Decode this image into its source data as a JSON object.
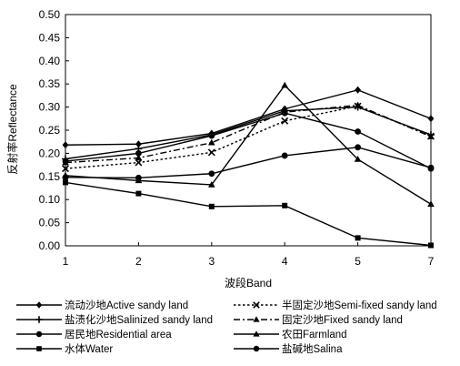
{
  "chart_data": {
    "type": "line",
    "title": "",
    "xlabel": "波段Band",
    "ylabel": "反射率Reflectance",
    "categories": [
      "1",
      "2",
      "3",
      "4",
      "5",
      "7"
    ],
    "ylim": [
      0.0,
      0.5
    ],
    "yticks": [
      "0.00",
      "0.05",
      "0.10",
      "0.15",
      "0.20",
      "0.25",
      "0.30",
      "0.35",
      "0.40",
      "0.45",
      "0.50"
    ],
    "grid": false,
    "legend_position": "bottom",
    "series": [
      {
        "name": "流动沙地Active sandy land",
        "marker": "diamond",
        "dash": "solid",
        "values": [
          0.218,
          0.22,
          0.243,
          0.296,
          0.337,
          0.275
        ]
      },
      {
        "name": "半固定沙地Semi-fixed sandy land",
        "marker": "x",
        "dash": "dot",
        "values": [
          0.167,
          0.18,
          0.202,
          0.27,
          0.302,
          0.237
        ]
      },
      {
        "name": "盐渍化沙地Salinized sandy land",
        "marker": "plus",
        "dash": "solid",
        "values": [
          0.188,
          0.21,
          0.24,
          0.292,
          0.3,
          0.24
        ]
      },
      {
        "name": "固定沙地Fixed sandy land",
        "marker": "triangle",
        "dash": "dashdot",
        "values": [
          0.18,
          0.19,
          0.223,
          0.289,
          0.304,
          0.236
        ]
      },
      {
        "name": "居民地Residential area",
        "marker": "circle",
        "dash": "solid",
        "values": [
          0.148,
          0.147,
          0.156,
          0.195,
          0.213,
          0.169
        ]
      },
      {
        "name": "农田Farmland",
        "marker": "triangle",
        "dash": "solid",
        "values": [
          0.152,
          0.141,
          0.132,
          0.347,
          0.187,
          0.09
        ]
      },
      {
        "name": "水体Water",
        "marker": "square",
        "dash": "solid",
        "values": [
          0.137,
          0.113,
          0.085,
          0.087,
          0.017,
          0.001
        ]
      },
      {
        "name": "盐碱地Salina",
        "marker": "circle",
        "dash": "solid",
        "values": [
          0.183,
          0.2,
          0.238,
          0.287,
          0.247,
          0.167
        ]
      }
    ]
  }
}
